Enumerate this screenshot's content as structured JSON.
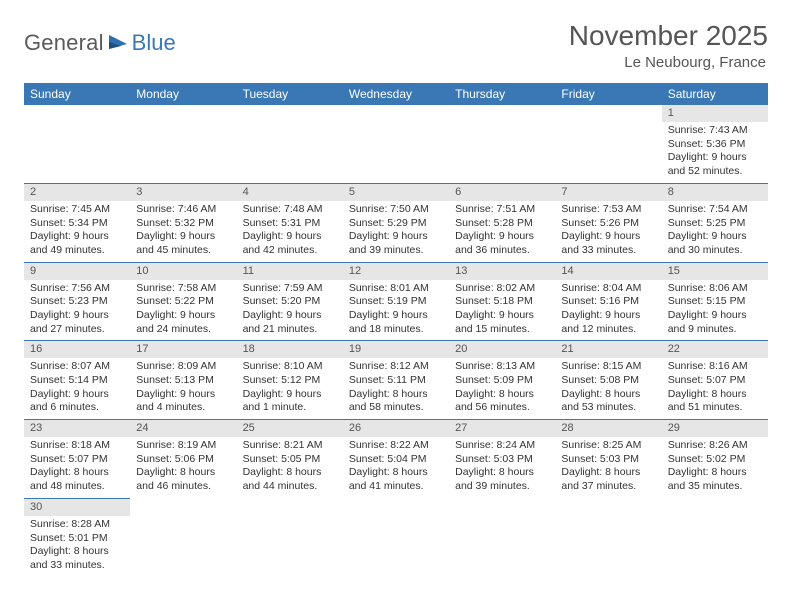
{
  "brand": {
    "part1": "General",
    "part2": "Blue"
  },
  "title": "November 2025",
  "location": "Le Neubourg, France",
  "colors": {
    "header_bg": "#3a78b5",
    "header_text": "#ffffff",
    "daynum_bg": "#e6e6e6",
    "cell_border": "#3a78b5",
    "text": "#333333",
    "title_text": "#555555",
    "logo_gray": "#5a5a5a",
    "logo_blue": "#3a78b5",
    "background": "#ffffff"
  },
  "fonts": {
    "family": "Arial",
    "title_size_pt": 21,
    "location_size_pt": 11,
    "dow_size_pt": 9,
    "daynum_size_pt": 8,
    "info_size_pt": 8
  },
  "days_of_week": [
    "Sunday",
    "Monday",
    "Tuesday",
    "Wednesday",
    "Thursday",
    "Friday",
    "Saturday"
  ],
  "first_weekday_index": 6,
  "last_day": 30,
  "days": {
    "1": {
      "sunrise": "7:43 AM",
      "sunset": "5:36 PM",
      "daylight": "9 hours and 52 minutes."
    },
    "2": {
      "sunrise": "7:45 AM",
      "sunset": "5:34 PM",
      "daylight": "9 hours and 49 minutes."
    },
    "3": {
      "sunrise": "7:46 AM",
      "sunset": "5:32 PM",
      "daylight": "9 hours and 45 minutes."
    },
    "4": {
      "sunrise": "7:48 AM",
      "sunset": "5:31 PM",
      "daylight": "9 hours and 42 minutes."
    },
    "5": {
      "sunrise": "7:50 AM",
      "sunset": "5:29 PM",
      "daylight": "9 hours and 39 minutes."
    },
    "6": {
      "sunrise": "7:51 AM",
      "sunset": "5:28 PM",
      "daylight": "9 hours and 36 minutes."
    },
    "7": {
      "sunrise": "7:53 AM",
      "sunset": "5:26 PM",
      "daylight": "9 hours and 33 minutes."
    },
    "8": {
      "sunrise": "7:54 AM",
      "sunset": "5:25 PM",
      "daylight": "9 hours and 30 minutes."
    },
    "9": {
      "sunrise": "7:56 AM",
      "sunset": "5:23 PM",
      "daylight": "9 hours and 27 minutes."
    },
    "10": {
      "sunrise": "7:58 AM",
      "sunset": "5:22 PM",
      "daylight": "9 hours and 24 minutes."
    },
    "11": {
      "sunrise": "7:59 AM",
      "sunset": "5:20 PM",
      "daylight": "9 hours and 21 minutes."
    },
    "12": {
      "sunrise": "8:01 AM",
      "sunset": "5:19 PM",
      "daylight": "9 hours and 18 minutes."
    },
    "13": {
      "sunrise": "8:02 AM",
      "sunset": "5:18 PM",
      "daylight": "9 hours and 15 minutes."
    },
    "14": {
      "sunrise": "8:04 AM",
      "sunset": "5:16 PM",
      "daylight": "9 hours and 12 minutes."
    },
    "15": {
      "sunrise": "8:06 AM",
      "sunset": "5:15 PM",
      "daylight": "9 hours and 9 minutes."
    },
    "16": {
      "sunrise": "8:07 AM",
      "sunset": "5:14 PM",
      "daylight": "9 hours and 6 minutes."
    },
    "17": {
      "sunrise": "8:09 AM",
      "sunset": "5:13 PM",
      "daylight": "9 hours and 4 minutes."
    },
    "18": {
      "sunrise": "8:10 AM",
      "sunset": "5:12 PM",
      "daylight": "9 hours and 1 minute."
    },
    "19": {
      "sunrise": "8:12 AM",
      "sunset": "5:11 PM",
      "daylight": "8 hours and 58 minutes."
    },
    "20": {
      "sunrise": "8:13 AM",
      "sunset": "5:09 PM",
      "daylight": "8 hours and 56 minutes."
    },
    "21": {
      "sunrise": "8:15 AM",
      "sunset": "5:08 PM",
      "daylight": "8 hours and 53 minutes."
    },
    "22": {
      "sunrise": "8:16 AM",
      "sunset": "5:07 PM",
      "daylight": "8 hours and 51 minutes."
    },
    "23": {
      "sunrise": "8:18 AM",
      "sunset": "5:07 PM",
      "daylight": "8 hours and 48 minutes."
    },
    "24": {
      "sunrise": "8:19 AM",
      "sunset": "5:06 PM",
      "daylight": "8 hours and 46 minutes."
    },
    "25": {
      "sunrise": "8:21 AM",
      "sunset": "5:05 PM",
      "daylight": "8 hours and 44 minutes."
    },
    "26": {
      "sunrise": "8:22 AM",
      "sunset": "5:04 PM",
      "daylight": "8 hours and 41 minutes."
    },
    "27": {
      "sunrise": "8:24 AM",
      "sunset": "5:03 PM",
      "daylight": "8 hours and 39 minutes."
    },
    "28": {
      "sunrise": "8:25 AM",
      "sunset": "5:03 PM",
      "daylight": "8 hours and 37 minutes."
    },
    "29": {
      "sunrise": "8:26 AM",
      "sunset": "5:02 PM",
      "daylight": "8 hours and 35 minutes."
    },
    "30": {
      "sunrise": "8:28 AM",
      "sunset": "5:01 PM",
      "daylight": "8 hours and 33 minutes."
    }
  },
  "labels": {
    "sunrise": "Sunrise:",
    "sunset": "Sunset:",
    "daylight": "Daylight:"
  }
}
